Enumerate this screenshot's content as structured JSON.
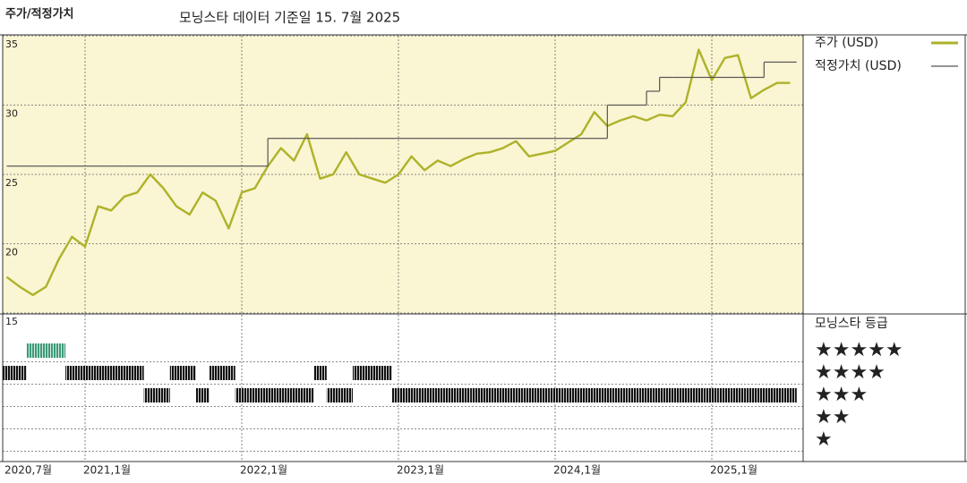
{
  "chart_data": [
    {
      "type": "line",
      "title": "주가/적정가치",
      "subtitle": "모닝스타 데이터 기준일 15. 7월 2025",
      "x": [
        "2020-07",
        "2020-08",
        "2020-09",
        "2020-10",
        "2020-11",
        "2020-12",
        "2021-01",
        "2021-02",
        "2021-03",
        "2021-04",
        "2021-05",
        "2021-06",
        "2021-07",
        "2021-08",
        "2021-09",
        "2021-10",
        "2021-11",
        "2021-12",
        "2022-01",
        "2022-02",
        "2022-03",
        "2022-04",
        "2022-05",
        "2022-06",
        "2022-07",
        "2022-08",
        "2022-09",
        "2022-10",
        "2022-11",
        "2022-12",
        "2023-01",
        "2023-02",
        "2023-03",
        "2023-04",
        "2023-05",
        "2023-06",
        "2023-07",
        "2023-08",
        "2023-09",
        "2023-10",
        "2023-11",
        "2023-12",
        "2024-01",
        "2024-02",
        "2024-03",
        "2024-04",
        "2024-05",
        "2024-06",
        "2024-07",
        "2024-08",
        "2024-09",
        "2024-10",
        "2024-11",
        "2024-12",
        "2025-01",
        "2025-02",
        "2025-03",
        "2025-04",
        "2025-05",
        "2025-06",
        "2025-07"
      ],
      "series": [
        {
          "name": "주가 (USD)",
          "color": "#aeb22a",
          "step": false,
          "values": [
            17.6,
            16.9,
            16.3,
            16.9,
            18.9,
            20.5,
            19.8,
            22.7,
            22.4,
            23.4,
            23.7,
            25.0,
            24.0,
            22.7,
            22.1,
            23.7,
            23.1,
            21.1,
            23.7,
            24.0,
            25.6,
            26.9,
            26.0,
            27.9,
            24.7,
            25.0,
            26.6,
            25.0,
            24.7,
            24.4,
            25.0,
            26.3,
            25.3,
            26.0,
            25.6,
            26.1,
            26.5,
            26.6,
            26.9,
            27.4,
            26.3,
            26.5,
            26.7,
            27.3,
            27.9,
            29.5,
            28.5,
            28.9,
            29.2,
            28.9,
            29.3,
            29.2,
            30.2,
            34.0,
            31.8,
            33.4,
            33.6,
            30.5,
            31.1,
            31.6,
            31.6
          ]
        },
        {
          "name": "적정가치 (USD)",
          "color": "#555555",
          "step": true,
          "values": [
            25.6,
            25.6,
            25.6,
            25.6,
            25.6,
            25.6,
            25.6,
            25.6,
            25.6,
            25.6,
            25.6,
            25.6,
            25.6,
            25.6,
            25.6,
            25.6,
            25.6,
            25.6,
            25.6,
            25.6,
            27.6,
            27.6,
            27.6,
            27.6,
            27.6,
            27.6,
            27.6,
            27.6,
            27.6,
            27.6,
            27.6,
            27.6,
            27.6,
            27.6,
            27.6,
            27.6,
            27.6,
            27.6,
            27.6,
            27.6,
            27.6,
            27.6,
            27.6,
            27.6,
            27.6,
            27.6,
            30.0,
            30.0,
            30.0,
            31.0,
            32.0,
            32.0,
            32.0,
            32.0,
            32.0,
            32.0,
            32.0,
            32.0,
            33.1,
            33.1,
            33.1
          ]
        }
      ],
      "ylim": [
        15,
        35
      ],
      "yticks": [
        15,
        20,
        25,
        30,
        35
      ],
      "xticks": [
        "2021-01",
        "2022-01",
        "2023-01",
        "2024-01",
        "2025-01"
      ],
      "grid": true,
      "background": "#faf5d2"
    },
    {
      "type": "rating",
      "title": "모닝스타 등급",
      "x": [
        "2020-07",
        "2020-08",
        "2020-09",
        "2020-10",
        "2020-11",
        "2020-12",
        "2021-01",
        "2021-02",
        "2021-03",
        "2021-04",
        "2021-05",
        "2021-06",
        "2021-07",
        "2021-08",
        "2021-09",
        "2021-10",
        "2021-11",
        "2021-12",
        "2022-01",
        "2022-02",
        "2022-03",
        "2022-04",
        "2022-05",
        "2022-06",
        "2022-07",
        "2022-08",
        "2022-09",
        "2022-10",
        "2022-11",
        "2022-12",
        "2023-01",
        "2023-02",
        "2023-03",
        "2023-04",
        "2023-05",
        "2023-06",
        "2023-07",
        "2023-08",
        "2023-09",
        "2023-10",
        "2023-11",
        "2023-12",
        "2024-01",
        "2024-02",
        "2024-03",
        "2024-04",
        "2024-05",
        "2024-06",
        "2024-07",
        "2024-08",
        "2024-09",
        "2024-10",
        "2024-11",
        "2024-12",
        "2025-01",
        "2025-02",
        "2025-03",
        "2025-04",
        "2025-05",
        "2025-06",
        "2025-07"
      ],
      "values": [
        4,
        4,
        5,
        5,
        5,
        4,
        4,
        4,
        4,
        4,
        4,
        3,
        3,
        4,
        4,
        3,
        4,
        4,
        3,
        3,
        3,
        3,
        3,
        3,
        4,
        3,
        3,
        4,
        4,
        4,
        3,
        3,
        3,
        3,
        3,
        3,
        3,
        3,
        3,
        3,
        3,
        3,
        3,
        3,
        3,
        3,
        3,
        3,
        3,
        3,
        3,
        3,
        3,
        3,
        3,
        3,
        3,
        3,
        3,
        3,
        3
      ],
      "levels": [
        {
          "value": 5,
          "label": "★★★★★"
        },
        {
          "value": 4,
          "label": "★★★★"
        },
        {
          "value": 3,
          "label": "★★★"
        },
        {
          "value": 2,
          "label": "★★"
        },
        {
          "value": 1,
          "label": "★"
        }
      ],
      "level_colors": [
        "#3d9a78",
        "#111111",
        "#111111",
        "#111111",
        "#111111"
      ],
      "xticks": [
        {
          "value": "2020-07",
          "label": "2020,7월"
        },
        {
          "value": "2021-01",
          "label": "2021,1월"
        },
        {
          "value": "2022-01",
          "label": "2022,1월"
        },
        {
          "value": "2023-01",
          "label": "2023,1월"
        },
        {
          "value": "2024-01",
          "label": "2024,1월"
        },
        {
          "value": "2025-01",
          "label": "2025,1월"
        }
      ]
    }
  ]
}
